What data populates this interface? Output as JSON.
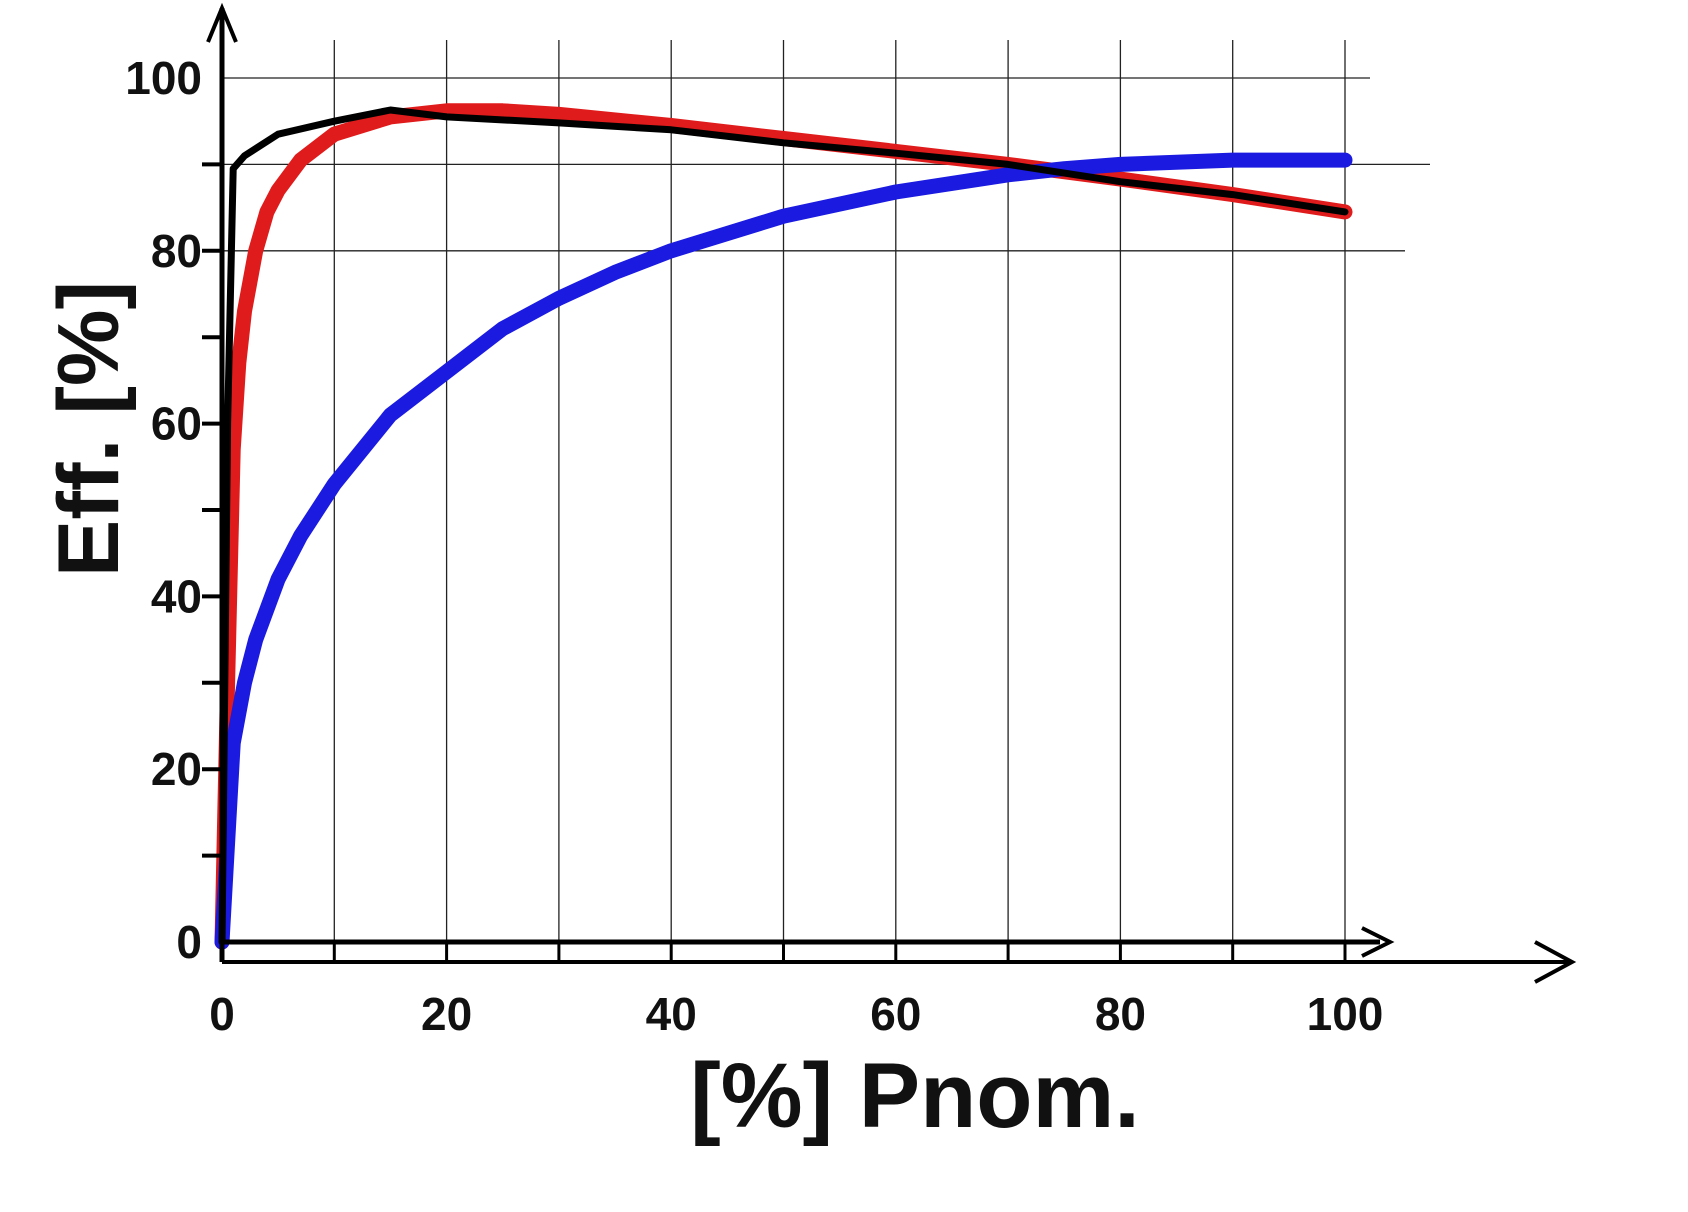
{
  "chart_data": {
    "type": "line",
    "xlabel": "[%] Pnom.",
    "ylabel": "Eff. [%]",
    "xlim": [
      0,
      100
    ],
    "ylim": [
      0,
      100
    ],
    "x_ticks": [
      "0",
      "20",
      "40",
      "60",
      "80",
      "100"
    ],
    "y_ticks": [
      "0",
      "20",
      "40",
      "60",
      "80",
      "100"
    ],
    "grid": true,
    "series": [
      {
        "color": "#e01b1b",
        "x": [
          0,
          0.5,
          1,
          1.5,
          2,
          3,
          4,
          5,
          7,
          10,
          15,
          20,
          25,
          30,
          40,
          50,
          60,
          70,
          80,
          90,
          100
        ],
        "y": [
          0,
          30,
          57,
          67,
          73,
          80,
          84.5,
          87,
          90.5,
          93.5,
          95.5,
          96.2,
          96.2,
          95.8,
          94.5,
          93,
          91.5,
          90,
          88.3,
          86.5,
          84.5
        ]
      },
      {
        "color": "#1a1ae0",
        "x": [
          0,
          1,
          2,
          3,
          5,
          7,
          10,
          15,
          20,
          25,
          30,
          35,
          40,
          50,
          60,
          70,
          75,
          80,
          90,
          100
        ],
        "y": [
          0,
          23,
          30,
          35,
          42,
          47,
          53,
          61,
          66,
          71,
          74.5,
          77.5,
          80,
          84,
          86.8,
          88.8,
          89.5,
          90,
          90.5,
          90.5
        ]
      },
      {
        "color": "#000000",
        "x": [
          0,
          0.5,
          1,
          2,
          5,
          10,
          15,
          20,
          30,
          40,
          50,
          60,
          70,
          80,
          90,
          100
        ],
        "y": [
          0,
          60,
          89.5,
          91,
          93.5,
          95,
          96.3,
          95.5,
          94.8,
          94,
          92.5,
          91.3,
          90,
          88,
          86.5,
          84.5
        ]
      }
    ]
  }
}
